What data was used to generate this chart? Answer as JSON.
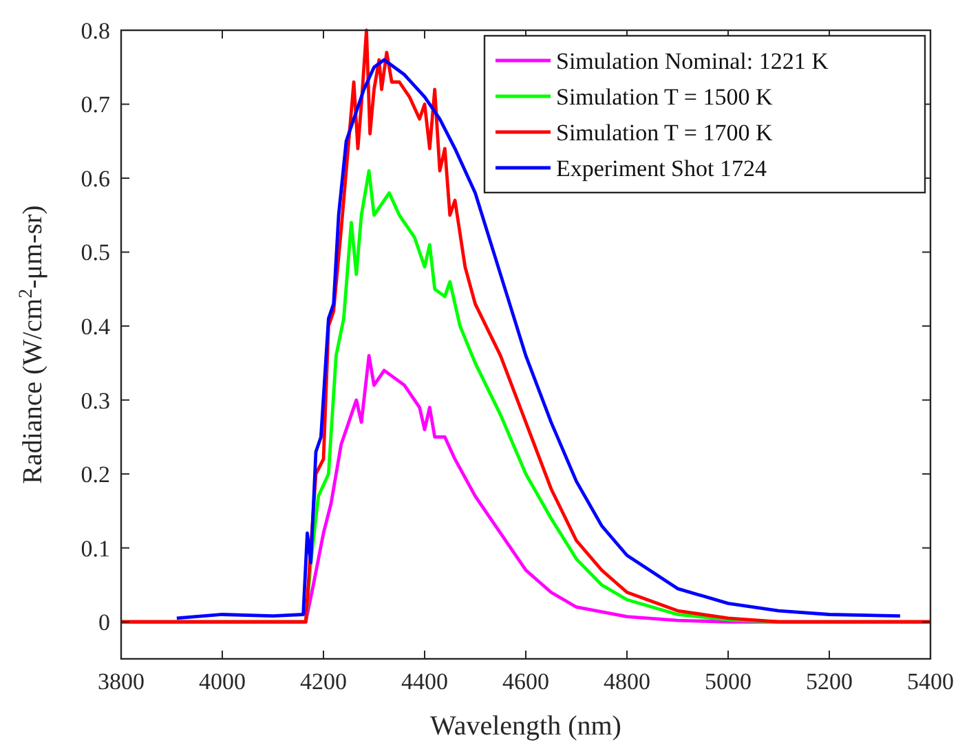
{
  "chart_data": {
    "type": "line",
    "xlabel": "Wavelength (nm)",
    "ylabel": "Radiance (W/cm$^{2}$-μm-sr)",
    "xlim": [
      3800,
      5400
    ],
    "ylim": [
      -0.05,
      0.8
    ],
    "xticks": [
      3800,
      4000,
      4200,
      4400,
      4600,
      4800,
      5000,
      5200,
      5400
    ],
    "yticks": [
      0,
      0.1,
      0.2,
      0.3,
      0.4,
      0.5,
      0.6,
      0.7,
      0.8
    ],
    "grid": false,
    "legend": "top right",
    "marker": "none",
    "line_style": "solid",
    "series": [
      {
        "name": "Simulation Nominal: 1221 K",
        "color": "#ff00ff",
        "x": [
          3800,
          4165,
          4180,
          4200,
          4215,
          4235,
          4250,
          4265,
          4275,
          4290,
          4300,
          4320,
          4340,
          4360,
          4390,
          4400,
          4410,
          4420,
          4440,
          4460,
          4500,
          4550,
          4600,
          4650,
          4700,
          4800,
          4900,
          5000,
          5400
        ],
        "values": [
          0,
          0,
          0.05,
          0.12,
          0.16,
          0.24,
          0.27,
          0.3,
          0.27,
          0.36,
          0.32,
          0.34,
          0.33,
          0.32,
          0.29,
          0.26,
          0.29,
          0.25,
          0.25,
          0.22,
          0.17,
          0.12,
          0.07,
          0.04,
          0.02,
          0.007,
          0.002,
          0,
          0
        ]
      },
      {
        "name": "Simulation T = 1500 K",
        "color": "#00ff00",
        "x": [
          3800,
          4165,
          4175,
          4190,
          4210,
          4225,
          4240,
          4255,
          4265,
          4275,
          4290,
          4300,
          4320,
          4330,
          4350,
          4380,
          4400,
          4410,
          4420,
          4440,
          4450,
          4470,
          4500,
          4550,
          4600,
          4650,
          4700,
          4750,
          4800,
          4900,
          5000,
          5100,
          5400
        ],
        "values": [
          0,
          0,
          0.08,
          0.17,
          0.2,
          0.36,
          0.41,
          0.54,
          0.47,
          0.55,
          0.61,
          0.55,
          0.57,
          0.58,
          0.55,
          0.52,
          0.48,
          0.51,
          0.45,
          0.44,
          0.46,
          0.4,
          0.35,
          0.28,
          0.2,
          0.14,
          0.085,
          0.05,
          0.03,
          0.01,
          0.003,
          0,
          0
        ]
      },
      {
        "name": "Simulation T = 1700 K",
        "color": "#ff0000",
        "x": [
          3800,
          4165,
          4172,
          4185,
          4200,
          4210,
          4220,
          4235,
          4250,
          4260,
          4268,
          4275,
          4285,
          4292,
          4300,
          4310,
          4315,
          4325,
          4335,
          4350,
          4370,
          4390,
          4400,
          4410,
          4420,
          4430,
          4440,
          4450,
          4460,
          4480,
          4500,
          4550,
          4600,
          4650,
          4700,
          4750,
          4800,
          4900,
          5000,
          5100,
          5400
        ],
        "values": [
          0,
          0,
          0.07,
          0.2,
          0.22,
          0.4,
          0.42,
          0.53,
          0.65,
          0.73,
          0.64,
          0.7,
          0.8,
          0.66,
          0.72,
          0.76,
          0.72,
          0.77,
          0.73,
          0.73,
          0.71,
          0.68,
          0.7,
          0.64,
          0.72,
          0.61,
          0.64,
          0.55,
          0.57,
          0.48,
          0.43,
          0.36,
          0.27,
          0.18,
          0.11,
          0.07,
          0.04,
          0.015,
          0.005,
          0,
          0
        ]
      },
      {
        "name": "Experiment Shot 1724",
        "color": "#0000ff",
        "x": [
          3910,
          4000,
          4100,
          4160,
          4168,
          4175,
          4185,
          4195,
          4210,
          4220,
          4230,
          4245,
          4260,
          4280,
          4300,
          4320,
          4340,
          4360,
          4400,
          4430,
          4460,
          4500,
          4550,
          4600,
          4650,
          4700,
          4750,
          4800,
          4900,
          5000,
          5100,
          5200,
          5340
        ],
        "values": [
          0.005,
          0.01,
          0.008,
          0.01,
          0.12,
          0.08,
          0.23,
          0.25,
          0.41,
          0.43,
          0.55,
          0.65,
          0.68,
          0.72,
          0.75,
          0.76,
          0.75,
          0.74,
          0.71,
          0.68,
          0.64,
          0.58,
          0.47,
          0.36,
          0.27,
          0.19,
          0.13,
          0.09,
          0.045,
          0.025,
          0.015,
          0.01,
          0.008
        ]
      }
    ]
  }
}
